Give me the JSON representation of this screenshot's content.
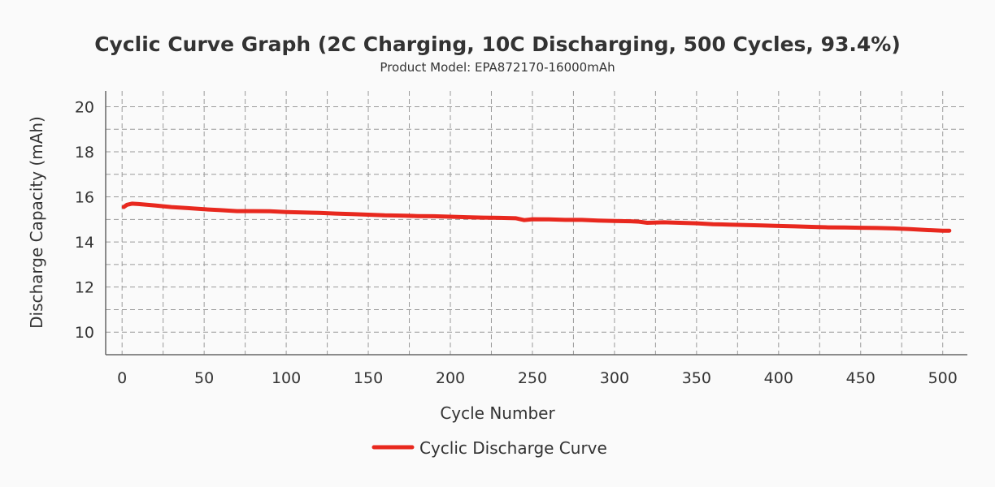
{
  "chart_data": {
    "type": "line",
    "title": "Cyclic Curve Graph (2C Charging, 10C Discharging, 500 Cycles, 93.4%)",
    "subtitle": "Product Model: EPA872170-16000mAh",
    "xlabel": "Cycle Number",
    "ylabel": "Discharge Capacity (mAh)",
    "xlim": [
      -10,
      515
    ],
    "ylim": [
      9,
      20.7
    ],
    "xticks": [
      0,
      50,
      100,
      150,
      200,
      250,
      300,
      350,
      400,
      450,
      500
    ],
    "yticks": [
      10,
      12,
      14,
      16,
      18,
      20
    ],
    "x_minor_grid": [
      25,
      75,
      125,
      175,
      225,
      275,
      325,
      375,
      425,
      475
    ],
    "y_minor_grid": [
      11,
      13,
      15,
      17,
      19
    ],
    "grid": true,
    "legend_position": "bottom-center",
    "series": [
      {
        "name": "Cyclic Discharge Curve",
        "color": "#e8281e",
        "x": [
          1,
          3,
          6,
          10,
          20,
          30,
          40,
          50,
          60,
          70,
          80,
          90,
          100,
          110,
          120,
          130,
          140,
          150,
          160,
          170,
          180,
          190,
          200,
          210,
          220,
          230,
          240,
          245,
          250,
          260,
          270,
          280,
          290,
          300,
          310,
          315,
          320,
          330,
          340,
          350,
          360,
          370,
          380,
          390,
          400,
          410,
          420,
          430,
          440,
          450,
          460,
          470,
          480,
          490,
          500,
          504
        ],
        "y": [
          15.55,
          15.65,
          15.7,
          15.68,
          15.62,
          15.55,
          15.5,
          15.45,
          15.41,
          15.37,
          15.37,
          15.36,
          15.33,
          15.31,
          15.29,
          15.26,
          15.24,
          15.21,
          15.18,
          15.17,
          15.15,
          15.14,
          15.12,
          15.1,
          15.08,
          15.07,
          15.05,
          14.97,
          15.01,
          15.0,
          14.98,
          14.98,
          14.95,
          14.93,
          14.92,
          14.9,
          14.85,
          14.87,
          14.85,
          14.83,
          14.79,
          14.77,
          14.75,
          14.73,
          14.71,
          14.69,
          14.67,
          14.65,
          14.64,
          14.63,
          14.62,
          14.6,
          14.57,
          14.53,
          14.5,
          14.5
        ]
      }
    ]
  }
}
